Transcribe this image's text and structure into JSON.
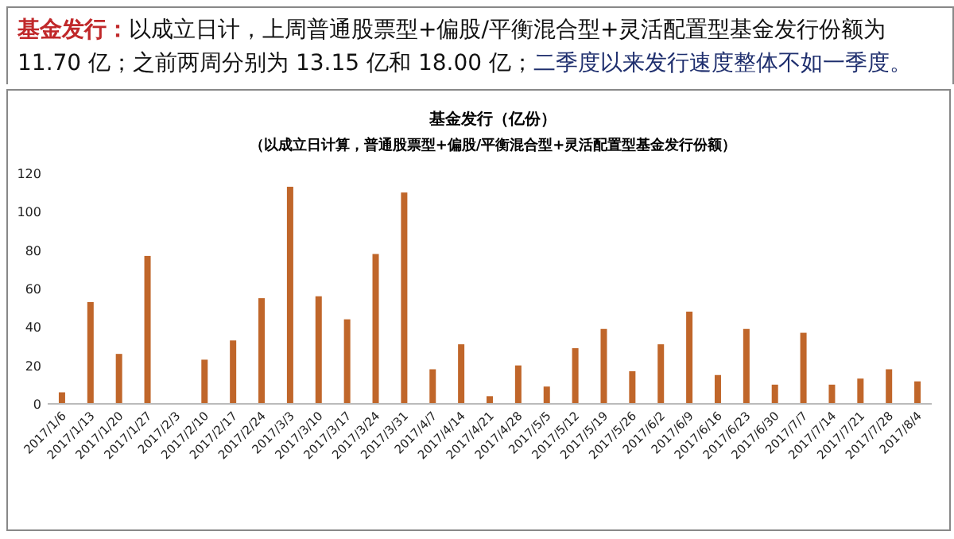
{
  "chart_data": {
    "type": "bar",
    "title": "基金发行（亿份）",
    "subtitle": "（以成立日计算，普通股票型+偏股/平衡混合型+灵活配置型基金发行份额）",
    "annotations": [
      "基金发行：",
      "以成立日计，上周普通股票型+偏股/平衡混合型+灵活配置型基金发行份额为 11.70 亿；之前两周分别为 13.15 亿和 18.00 亿；",
      "二季度以来发行速度整体不如一季度。"
    ],
    "categories": [
      "2017/1/6",
      "2017/1/13",
      "2017/1/20",
      "2017/1/27",
      "2017/2/3",
      "2017/2/10",
      "2017/2/17",
      "2017/2/24",
      "2017/3/3",
      "2017/3/10",
      "2017/3/17",
      "2017/3/24",
      "2017/3/31",
      "2017/4/7",
      "2017/4/14",
      "2017/4/21",
      "2017/4/28",
      "2017/5/5",
      "2017/5/12",
      "2017/5/19",
      "2017/5/26",
      "2017/6/2",
      "2017/6/9",
      "2017/6/16",
      "2017/6/23",
      "2017/6/30",
      "2017/7/7",
      "2017/7/14",
      "2017/7/21",
      "2017/7/28",
      "2017/8/4"
    ],
    "values": [
      6,
      53,
      26,
      77,
      0,
      23,
      33,
      55,
      113,
      56,
      44,
      78,
      110,
      18,
      31,
      4,
      20,
      9,
      29,
      39,
      17,
      31,
      48,
      15,
      39,
      10,
      37,
      10,
      13.15,
      18.0,
      11.7
    ],
    "color": "#c0662a",
    "ylim": [
      0,
      120
    ],
    "yticks": [
      0,
      20,
      40,
      60,
      80,
      100,
      120
    ],
    "grid": false
  }
}
